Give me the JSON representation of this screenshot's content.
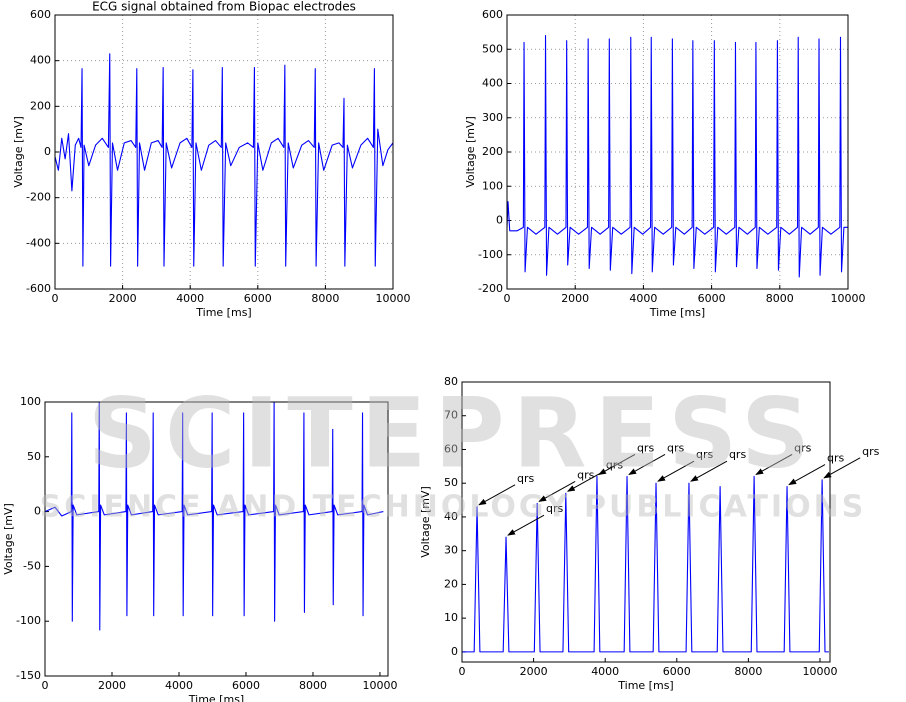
{
  "chart_data": [
    {
      "type": "line",
      "title": "ECG signal obtained from Biopac electrodes",
      "x_label": "Time [ms]",
      "y_label": "Voltage [mV]",
      "xlim": [
        0,
        10000
      ],
      "xticks": [
        0,
        2000,
        4000,
        6000,
        8000,
        10000
      ],
      "ylim": [
        -600,
        600
      ],
      "yticks": [
        -600,
        -400,
        -200,
        0,
        200,
        400,
        600
      ],
      "grid": true,
      "color": "#0000ff",
      "x": [
        0,
        100,
        200,
        300,
        400,
        500,
        600,
        700,
        770,
        800,
        825,
        860,
        1000,
        1200,
        1400,
        1580,
        1620,
        1645,
        1700,
        1850,
        2050,
        2250,
        2390,
        2420,
        2445,
        2500,
        2650,
        2850,
        3050,
        3170,
        3200,
        3225,
        3290,
        3450,
        3700,
        3900,
        4050,
        4080,
        4105,
        4170,
        4330,
        4550,
        4750,
        4920,
        4950,
        4975,
        5050,
        5200,
        5450,
        5700,
        5870,
        5900,
        5925,
        6000,
        6150,
        6400,
        6600,
        6770,
        6800,
        6825,
        6900,
        7050,
        7300,
        7500,
        7670,
        7700,
        7725,
        7800,
        7950,
        8200,
        8400,
        8520,
        8550,
        8575,
        8650,
        8800,
        9050,
        9250,
        9420,
        9450,
        9475,
        9550,
        9700,
        9850,
        10000
      ],
      "values": [
        -20,
        -80,
        60,
        -30,
        80,
        -170,
        30,
        60,
        20,
        365,
        -500,
        30,
        -60,
        30,
        60,
        20,
        430,
        -500,
        40,
        -80,
        40,
        50,
        20,
        365,
        -500,
        40,
        -80,
        40,
        50,
        20,
        370,
        -500,
        40,
        -70,
        40,
        60,
        20,
        360,
        -500,
        40,
        -80,
        30,
        50,
        20,
        370,
        -500,
        40,
        -60,
        20,
        40,
        20,
        370,
        -500,
        40,
        -80,
        40,
        60,
        20,
        380,
        -500,
        40,
        -70,
        30,
        50,
        20,
        365,
        -500,
        40,
        -80,
        30,
        40,
        20,
        235,
        -500,
        30,
        -70,
        30,
        60,
        20,
        365,
        -500,
        100,
        -60,
        10,
        40
      ]
    },
    {
      "type": "line",
      "x_label": "Time [ms]",
      "y_label": "Voltage [mV]",
      "xlim": [
        0,
        10000
      ],
      "xticks": [
        0,
        2000,
        4000,
        6000,
        8000,
        10000
      ],
      "ylim": [
        -200,
        600
      ],
      "yticks": [
        -200,
        -100,
        0,
        100,
        200,
        300,
        400,
        500,
        600
      ],
      "grid": true,
      "color": "#0000ff",
      "x": [
        0,
        30,
        80,
        300,
        480,
        500,
        530,
        600,
        850,
        1110,
        1130,
        1160,
        1230,
        1480,
        1730,
        1750,
        1780,
        1850,
        2100,
        2360,
        2380,
        2410,
        2480,
        2730,
        2980,
        3000,
        3030,
        3100,
        3350,
        3610,
        3630,
        3660,
        3730,
        3980,
        4210,
        4230,
        4260,
        4330,
        4580,
        4830,
        4850,
        4880,
        4950,
        5200,
        5430,
        5450,
        5480,
        5550,
        5800,
        6060,
        6080,
        6110,
        6180,
        6430,
        6680,
        6700,
        6730,
        6800,
        7050,
        7280,
        7300,
        7330,
        7400,
        7650,
        7910,
        7930,
        7960,
        8030,
        8280,
        8520,
        8540,
        8570,
        8640,
        8890,
        9130,
        9150,
        9180,
        9250,
        9500,
        9760,
        9780,
        9810,
        9880,
        10000
      ],
      "values": [
        -20,
        55,
        -30,
        -30,
        -20,
        520,
        -150,
        -20,
        -40,
        -20,
        540,
        -160,
        -20,
        -40,
        -20,
        525,
        -130,
        -20,
        -40,
        -20,
        530,
        -140,
        -20,
        -40,
        -20,
        530,
        -145,
        -20,
        -40,
        -20,
        535,
        -155,
        -20,
        -40,
        -20,
        535,
        -150,
        -20,
        -40,
        -20,
        530,
        -130,
        -20,
        -40,
        -20,
        525,
        -140,
        -20,
        -40,
        -20,
        525,
        -150,
        -20,
        -40,
        -20,
        520,
        -135,
        -20,
        -40,
        -20,
        520,
        -140,
        -20,
        -40,
        -20,
        525,
        -145,
        -20,
        -40,
        -20,
        535,
        -165,
        -20,
        -40,
        -20,
        530,
        -160,
        -20,
        -40,
        -20,
        535,
        -150,
        -20,
        -20
      ]
    },
    {
      "type": "line",
      "x_label": "Time [ms]",
      "y_label": "Voltage [mV]",
      "xlim": [
        0,
        10240
      ],
      "xticks": [
        0,
        2000,
        4000,
        6000,
        8000,
        10000
      ],
      "ylim": [
        -150,
        100
      ],
      "yticks": [
        -150,
        -100,
        -50,
        0,
        50,
        100
      ],
      "grid": false,
      "color": "#0000ff",
      "x": [
        0,
        300,
        500,
        785,
        800,
        815,
        840,
        950,
        1605,
        1620,
        1635,
        1660,
        1770,
        2415,
        2430,
        2445,
        2470,
        2580,
        3215,
        3230,
        3245,
        3270,
        3380,
        4095,
        4110,
        4125,
        4150,
        4260,
        4975,
        4990,
        5005,
        5030,
        5140,
        5915,
        5930,
        5945,
        5970,
        6080,
        6825,
        6840,
        6855,
        6880,
        6990,
        7715,
        7730,
        7745,
        7770,
        7880,
        8575,
        8590,
        8605,
        8630,
        8740,
        9465,
        9480,
        9495,
        9520,
        9630,
        10100
      ],
      "values": [
        0,
        4,
        -4,
        0,
        90,
        -100,
        6,
        -3,
        0,
        100,
        -108,
        6,
        -3,
        0,
        90,
        -95,
        6,
        -3,
        0,
        90,
        -95,
        6,
        -3,
        0,
        90,
        -95,
        6,
        -3,
        0,
        90,
        -95,
        6,
        -3,
        0,
        90,
        -95,
        6,
        -3,
        0,
        100,
        -100,
        6,
        -3,
        0,
        90,
        -92,
        6,
        -3,
        0,
        75,
        -85,
        6,
        -3,
        0,
        90,
        -95,
        6,
        -3,
        0
      ]
    },
    {
      "type": "line",
      "x_label": "Time [ms]",
      "y_label": "Voltage [mV]",
      "xlim": [
        0,
        10280
      ],
      "xticks": [
        0,
        2000,
        4000,
        6000,
        8000,
        10000
      ],
      "ylim": [
        -3,
        80
      ],
      "yticks": [
        0,
        10,
        20,
        30,
        40,
        50,
        60,
        70,
        80
      ],
      "grid": false,
      "color": "#0000ff",
      "x": [
        0,
        340,
        420,
        500,
        1150,
        1230,
        1310,
        2020,
        2100,
        2180,
        2820,
        2900,
        2980,
        3690,
        3770,
        3850,
        4530,
        4610,
        4690,
        5340,
        5420,
        5500,
        6260,
        6340,
        6420,
        7130,
        7210,
        7290,
        8080,
        8160,
        8240,
        9000,
        9080,
        9160,
        9980,
        10060,
        10140,
        10250
      ],
      "values": [
        0,
        0,
        43,
        0,
        0,
        34,
        0,
        0,
        44,
        0,
        0,
        47,
        0,
        0,
        52,
        0,
        0,
        52,
        0,
        0,
        50,
        0,
        0,
        50,
        0,
        0,
        49,
        0,
        0,
        52,
        0,
        0,
        49,
        0,
        0,
        51,
        0,
        0
      ],
      "annotations": [
        {
          "text": "qrs",
          "x": 420,
          "y": 43
        },
        {
          "text": "qrs",
          "x": 1230,
          "y": 34
        },
        {
          "text": "qrs",
          "x": 2100,
          "y": 44
        },
        {
          "text": "qrs",
          "x": 2900,
          "y": 47
        },
        {
          "text": "qrs",
          "x": 3770,
          "y": 52
        },
        {
          "text": "qrs",
          "x": 4610,
          "y": 52
        },
        {
          "text": "qrs",
          "x": 5420,
          "y": 50
        },
        {
          "text": "qrs",
          "x": 6340,
          "y": 50
        },
        {
          "text": "qrs",
          "x": 8160,
          "y": 52
        },
        {
          "text": "qrs",
          "x": 9080,
          "y": 49
        },
        {
          "text": "qrs",
          "x": 10060,
          "y": 51
        }
      ]
    }
  ],
  "watermark": {
    "title": "SCITEPRESS",
    "subtitle": "SCIENCE AND TECHNOLOGY PUBLICATIONS"
  }
}
